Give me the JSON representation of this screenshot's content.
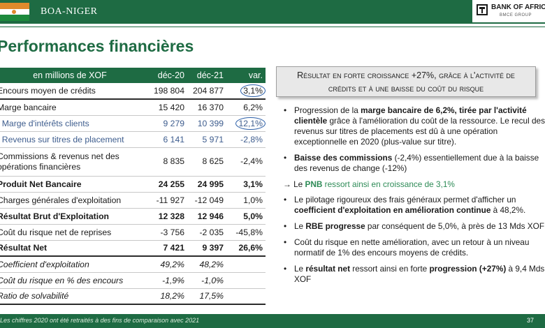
{
  "header": {
    "country": "BOA-NIGER",
    "brand_name": "BANK OF AFRICA",
    "brand_sub": "BMCE GROUP",
    "colors": {
      "green": "#1e6b43",
      "flag_orange": "#e08a2c",
      "flag_green": "#1d8a3c"
    }
  },
  "title": "Performances financières",
  "table": {
    "headers": [
      "en millions de XOF",
      "déc-20",
      "déc-21",
      "var."
    ],
    "rows": [
      {
        "label": "Encours moyen de crédits",
        "d20": "198 804",
        "d21": "204 877",
        "var": "3,1%"
      },
      {
        "label": "Marge bancaire",
        "d20": "15 420",
        "d21": "16 370",
        "var": "6,2%"
      },
      {
        "label": ". Marge d'intérêts clients",
        "d20": "9 279",
        "d21": "10 399",
        "var": "12,1%"
      },
      {
        "label": ". Revenus sur titres de placement",
        "d20": "6 141",
        "d21": "5 971",
        "var": "-2,8%"
      },
      {
        "label": "Commissions & revenus net des opérations financières",
        "d20": "8 835",
        "d21": "8 625",
        "var": "-2,4%"
      },
      {
        "label": "Produit Net Bancaire",
        "d20": "24 255",
        "d21": "24 995",
        "var": "3,1%"
      },
      {
        "label": "Charges générales d'exploitation",
        "d20": "-11 927",
        "d21": "-12 049",
        "var": "1,0%"
      },
      {
        "label": "Résultat Brut d'Exploitation",
        "d20": "12 328",
        "d21": "12 946",
        "var": "5,0%"
      },
      {
        "label": "Coût du risque net de reprises",
        "d20": "-3 756",
        "d21": "-2 035",
        "var": "-45,8%"
      },
      {
        "label": "Résultat Net",
        "d20": "7 421",
        "d21": "9 397",
        "var": "26,6%"
      },
      {
        "label": "Coefficient d'exploitation",
        "d20": "49,2%",
        "d21": "48,2%",
        "var": ""
      },
      {
        "label": "Coût du risque en % des encours",
        "d20": "-1,9%",
        "d21": "-1,0%",
        "var": ""
      },
      {
        "label": "Ratio de solvabilité",
        "d20": "18,2%",
        "d21": "17,5%",
        "var": ""
      }
    ]
  },
  "callout": {
    "line1": "Résultat en forte croissance +27%, grâce à l'activité de",
    "line2": "crédits et à une baisse du coût du risque"
  },
  "bullets": {
    "b1_pre": "Progression de la ",
    "b1_bold": "marge bancaire de 6,2%, tirée par l'activité clientèle",
    "b1_post": " grâce à l'amélioration du coût de la ressource. Le recul des revenus sur titres de placements est dû à une opération exceptionnelle en 2020 (plus-value sur titre).",
    "b2_bold": "Baisse des commissions",
    "b2_post": " (-2,4%) essentiellement due à la baisse des revenus de change (-12%)",
    "arrow_pre": "→ Le ",
    "arrow_bold": "PNB",
    "arrow_post": " ressort ainsi en croissance de 3,1%",
    "b3_pre": "Le pilotage rigoureux des frais généraux permet d'afficher un ",
    "b3_bold": "coefficient d'exploitation en amélioration continue",
    "b3_post": " à 48,2%.",
    "b4_pre": "Le ",
    "b4_bold": "RBE progresse",
    "b4_post": " par conséquent de 5,0%, à près de 13 Mds XOF",
    "b5": "Coût du risque en nette amélioration, avec un retour à un niveau normatif de 1% des encours moyens de crédits.",
    "b6_pre": "Le ",
    "b6_bold": "résultat net",
    "b6_mid": " ressort ainsi en forte ",
    "b6_bold2": "progression (+27%)",
    "b6_post": " à 9,4 Mds XOF"
  },
  "footer": {
    "note": "Les chiffres 2020 ont été retraités à des fins de comparaison avec 2021",
    "page": "37"
  }
}
